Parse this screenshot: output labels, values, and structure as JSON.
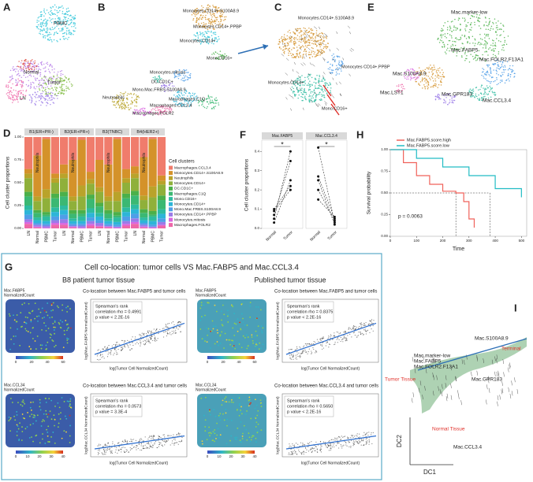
{
  "panels": {
    "a": {
      "label": "A",
      "clusters": [
        "PBMC",
        "Normal",
        "LN",
        "Tumor"
      ]
    },
    "b": {
      "label": "B",
      "clusters": [
        "Monocytes.CD14+.S100A8.9",
        "Monocytes.CD14+.PPBP",
        "Monocytes.CD14+",
        "Mono.CD16+",
        "Monocytes.mitosis",
        "DC.CD1C+",
        "Mono.Mac.FRBS.S100A8.9",
        "Neutrophils",
        "Macrophages.C1Q",
        "Macrophages.CCL3.4",
        "Macrophages.FOLR2"
      ]
    },
    "c": {
      "label": "C",
      "clusters": [
        "Monocytes.CD14+.S100A8.9",
        "Monocytes CD14+.PPBP",
        "Monocytes.CD14+",
        "Mono.CD16+"
      ]
    },
    "e": {
      "label": "E",
      "clusters": [
        "Mac.marker-low",
        "Mac.FABP5",
        "Mac.FOLR2.F13A1",
        "Mac.S100A8.9",
        "Mac.GPR183",
        "Mac.LST1",
        "Mac.CCL3.4"
      ]
    },
    "d": {
      "label": "D",
      "ylabel": "Cell cluster proportions",
      "facets": [
        "B1(ER+PR-)",
        "B2(ER+PR+)",
        "B3(TNBC)",
        "B4(HER2+)"
      ],
      "categories": [
        "LN",
        "Normal",
        "PBMC",
        "Tumor"
      ],
      "inner_label": "Neutrophils",
      "legend_title": "Cell clusters",
      "clusters": [
        "Macrophages.CCL3.4",
        "Monocytes.CD14+.S100A8.9",
        "Neutrophils",
        "Monocytes.CD14+",
        "DC.CD1C+",
        "Macrophages.C1Q",
        "Mono.CD16+",
        "Monocytes.CD14+",
        "Mono.Mac.FRBS.S100A8.9",
        "Monocytes.CD14+.PPBP",
        "Monocytes.mitosis",
        "Macrophages.FOLR2"
      ],
      "colors": [
        "#f07c6c",
        "#d4922a",
        "#b9a32a",
        "#8fb03a",
        "#4bb04a",
        "#3bb873",
        "#2ebba0",
        "#2db5d8",
        "#4f9ee8",
        "#9b7be8",
        "#d965e0",
        "#ee67a8"
      ],
      "values": [
        [
          [
            0.35,
            0.05,
            0.05,
            0.15,
            0.05,
            0.1,
            0.05,
            0.05,
            0.05,
            0.03,
            0.02,
            0.05
          ],
          [
            0.2,
            0.45,
            0.05,
            0.1,
            0.03,
            0.05,
            0.03,
            0.03,
            0.02,
            0.02,
            0.01,
            0.01
          ],
          [
            0.02,
            0.55,
            0.1,
            0.15,
            0.03,
            0.02,
            0.05,
            0.03,
            0.02,
            0.02,
            0.01,
            0.0
          ],
          [
            0.4,
            0.05,
            0.05,
            0.12,
            0.05,
            0.1,
            0.05,
            0.05,
            0.04,
            0.03,
            0.02,
            0.04
          ]
        ],
        [
          [
            0.3,
            0.1,
            0.05,
            0.15,
            0.05,
            0.1,
            0.05,
            0.05,
            0.05,
            0.04,
            0.02,
            0.04
          ],
          [
            0.25,
            0.4,
            0.05,
            0.1,
            0.04,
            0.05,
            0.03,
            0.03,
            0.02,
            0.01,
            0.01,
            0.01
          ],
          [
            0.03,
            0.5,
            0.12,
            0.15,
            0.04,
            0.03,
            0.05,
            0.03,
            0.02,
            0.02,
            0.01,
            0.0
          ],
          [
            0.38,
            0.08,
            0.05,
            0.12,
            0.05,
            0.1,
            0.05,
            0.05,
            0.04,
            0.03,
            0.02,
            0.03
          ]
        ],
        [
          [
            0.25,
            0.3,
            0.05,
            0.12,
            0.04,
            0.07,
            0.04,
            0.04,
            0.03,
            0.03,
            0.01,
            0.02
          ],
          [
            0.3,
            0.35,
            0.05,
            0.1,
            0.04,
            0.05,
            0.03,
            0.03,
            0.02,
            0.01,
            0.01,
            0.01
          ],
          [
            0.02,
            0.58,
            0.1,
            0.12,
            0.04,
            0.02,
            0.05,
            0.03,
            0.02,
            0.01,
            0.01,
            0.0
          ],
          [
            0.35,
            0.1,
            0.05,
            0.12,
            0.05,
            0.1,
            0.05,
            0.05,
            0.05,
            0.03,
            0.02,
            0.03
          ]
        ],
        [
          [
            0.32,
            0.08,
            0.05,
            0.14,
            0.05,
            0.1,
            0.05,
            0.05,
            0.05,
            0.04,
            0.02,
            0.05
          ],
          [
            0.22,
            0.42,
            0.05,
            0.1,
            0.04,
            0.05,
            0.03,
            0.03,
            0.02,
            0.02,
            0.01,
            0.01
          ],
          [
            0.02,
            0.52,
            0.12,
            0.15,
            0.04,
            0.02,
            0.05,
            0.04,
            0.02,
            0.01,
            0.01,
            0.0
          ],
          [
            0.42,
            0.06,
            0.04,
            0.12,
            0.05,
            0.1,
            0.05,
            0.05,
            0.04,
            0.03,
            0.01,
            0.03
          ]
        ]
      ],
      "ylim": [
        0,
        1
      ],
      "yticks": [
        {
          "value": 0,
          "label": "0.00"
        },
        {
          "value": 0.25,
          "label": "0.25"
        },
        {
          "value": 0.5,
          "label": "0.50"
        },
        {
          "value": 0.75,
          "label": "0.75"
        },
        {
          "value": 1,
          "label": "1.00"
        }
      ]
    },
    "f": {
      "label": "F",
      "ylabel": "Cell cluster proportions",
      "categories": [
        "Normal",
        "Tumor"
      ],
      "significance": "*",
      "facets": [
        {
          "name": "Mac.FABP5",
          "normal": [
            0.03,
            0.05,
            0.07,
            0.09,
            0.1
          ],
          "tumor": [
            0.25,
            0.4,
            0.35,
            0.2,
            0.22
          ]
        },
        {
          "name": "Mac.CCL3.4",
          "normal": [
            0.42,
            0.27,
            0.25,
            0.2,
            0.15
          ],
          "tumor": [
            0.03,
            0.05,
            0.02,
            0.04,
            0.06
          ]
        }
      ],
      "ylim": [
        0,
        0.45
      ],
      "yticks": [
        {
          "value": 0,
          "label": "0.0"
        },
        {
          "value": 0.1,
          "label": "0.1"
        },
        {
          "value": 0.2,
          "label": "0.2"
        },
        {
          "value": 0.3,
          "label": "0.3"
        },
        {
          "value": 0.4,
          "label": "0.4"
        }
      ]
    },
    "h": {
      "label": "H",
      "ylabel": "Survival probability",
      "xlabel": "Time",
      "pvalue": "p = 0.0063",
      "series": [
        {
          "name": "Mac.FABP5.score.high",
          "color": "#f0625a",
          "x": [
            0,
            50,
            100,
            150,
            200,
            250,
            280,
            300,
            320
          ],
          "values": [
            1,
            0.85,
            0.7,
            0.6,
            0.52,
            0.5,
            0.4,
            0.2,
            0.1
          ]
        },
        {
          "name": "Mac.FABP5.score.low",
          "color": "#22bcc4",
          "x": [
            0,
            100,
            200,
            300,
            400,
            500
          ],
          "values": [
            1,
            0.9,
            0.8,
            0.7,
            0.55,
            0.45
          ]
        }
      ],
      "xlim": [
        0,
        520
      ],
      "ylim": [
        0,
        1
      ],
      "xticks": [
        0,
        100,
        200,
        300,
        400,
        500
      ],
      "yticks": [
        {
          "value": 0,
          "label": "0.00"
        },
        {
          "value": 0.25,
          "label": "0.25"
        },
        {
          "value": 0.5,
          "label": "0.50"
        },
        {
          "value": 0.75,
          "label": "0.75"
        },
        {
          "value": 1,
          "label": "1.00"
        }
      ]
    },
    "g": {
      "label": "G",
      "title": "Cell co-location: tumor cells VS Mac.FABP5 and Mac.CCL3.4",
      "columns": [
        {
          "title": "B8 patient tumor tissue",
          "plots": [
            {
              "map_title": [
                "Mac.FABP5",
                "NormalizedCount"
              ],
              "colorbar": [
                "0",
                "20",
                "40",
                "60"
              ],
              "title": "Co-location between Mac.FABP5 and tumor cells",
              "stats": [
                "Spearman's rank",
                "correlation rho = 0.4991",
                "p value < 2.2E-16"
              ],
              "ylabel": "log(Mac.FABP5 NormalizedCount)",
              "xlabel": "log(Tumor Cell NormalizedCount)"
            },
            {
              "map_title": [
                "Mac.CCL34",
                "NormalizedCount"
              ],
              "colorbar": [
                "0",
                "10",
                "20",
                "30",
                "40"
              ],
              "title": "Co-location between Mac.CCL3.4 and tumor cells",
              "stats": [
                "Spearman's rank",
                "correlation rho = 0.0573",
                "p value = 3.3E-4"
              ],
              "ylabel": "log(Mac.CCL34 NormalizedCount)",
              "xlabel": "log(Tumor Cell NormalizedCount)"
            }
          ]
        },
        {
          "title": "Published tumor tissue",
          "plots": [
            {
              "map_title": [
                "Mac.FABP5",
                "NormalizedCount"
              ],
              "colorbar": [
                "0",
                "20",
                "40",
                "60"
              ],
              "title": "Co-location between Mac.FABP5 and tumor cells",
              "stats": [
                "Spearman's rank",
                "correlation rho = 0.8375",
                "p value < 2.2E-16"
              ],
              "ylabel": "log(Mac.FABP5 NormalizedCount)",
              "xlabel": "log(Tumor Cell NormalizedCount)"
            },
            {
              "map_title": [
                "Mac.CCL34",
                "NormalizedCount"
              ],
              "colorbar": [
                "0",
                "10",
                "20",
                "30",
                "40"
              ],
              "title": "Co-location between Mac.CCL3.4 and tumor cells",
              "stats": [
                "Spearman's rank",
                "correlation rho = 0.5650",
                "p value < 2.2E-16"
              ],
              "ylabel": "log(Mac.CCL34 NormalizedCount)",
              "xlabel": "log(Tumor Cell NormalizedCount)"
            }
          ]
        }
      ]
    },
    "i": {
      "label": "I",
      "clusters": [
        "Mac.marker-low",
        "Mac.FABP5",
        "Mac.FOLR2.F13A1",
        "Mac.S100A8.9",
        "Mac.GPR183",
        "Mac.CCL3.4"
      ],
      "tissues": [
        "Tumor Tissue",
        "Normal Tissue",
        "Terminal"
      ],
      "xlabel": "DC1",
      "ylabel": "DC2"
    }
  }
}
